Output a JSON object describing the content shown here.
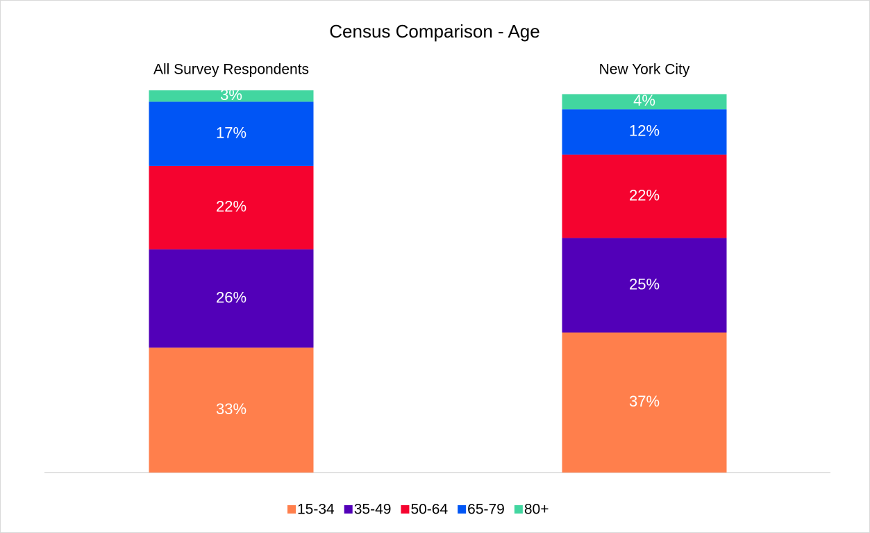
{
  "chart_data": {
    "type": "stacked_bar",
    "title": "Census Comparison - Age",
    "categories": [
      "All Survey Respondents",
      "New York City"
    ],
    "series": [
      {
        "name": "15-34",
        "color": "#ff7f4c",
        "values": [
          33,
          37
        ],
        "value_labels": [
          "33%",
          "37%"
        ]
      },
      {
        "name": "35-49",
        "color": "#5200b8",
        "values": [
          26,
          25
        ],
        "value_labels": [
          "26%",
          "25%"
        ]
      },
      {
        "name": "50-64",
        "color": "#f5032f",
        "values": [
          22,
          22
        ],
        "value_labels": [
          "22%",
          "22%"
        ]
      },
      {
        "name": "65-79",
        "color": "#0055f5",
        "values": [
          17,
          12
        ],
        "value_labels": [
          "17%",
          "12%"
        ]
      },
      {
        "name": "80+",
        "color": "#42d6a0",
        "values": [
          3,
          4
        ],
        "value_labels": [
          "3%",
          "4%"
        ]
      }
    ]
  }
}
